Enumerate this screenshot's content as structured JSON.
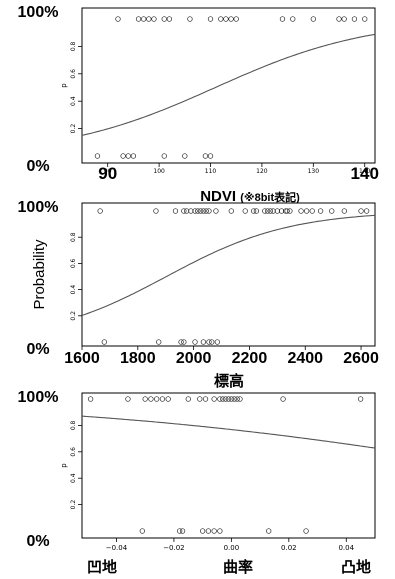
{
  "chart_data": [
    {
      "type": "scatter",
      "subtype": "logistic-regression",
      "xlabel_main": "NDVI",
      "xlabel_note": "(※8bit表記)",
      "ylabel": "p",
      "y_big_top": "100%",
      "y_big_bottom": "0%",
      "xlim": [
        85,
        142
      ],
      "ylim": [
        0,
        1
      ],
      "x_ticks": [
        90,
        100,
        110,
        120,
        130,
        140
      ],
      "x_big_labels": [
        {
          "value": 90,
          "text": "90"
        },
        {
          "value": 140,
          "text": "140"
        }
      ],
      "y_ticks": [
        0.2,
        0.4,
        0.6,
        0.8
      ],
      "curve": {
        "intercept": -7.4,
        "slope": 0.0667
      },
      "points_present": [
        92,
        96,
        97,
        98,
        99,
        101,
        102,
        106,
        110,
        112,
        113,
        114,
        115,
        124,
        126,
        130,
        135,
        136,
        138,
        140
      ],
      "points_absent": [
        88,
        93,
        94,
        95,
        101,
        105,
        109,
        110
      ]
    },
    {
      "type": "scatter",
      "subtype": "logistic-regression",
      "xlabel_main": "標高",
      "ylabel": "Probability",
      "y_big_top": "100%",
      "y_big_bottom": "0%",
      "xlim": [
        1600,
        2650
      ],
      "ylim": [
        0,
        1
      ],
      "x_ticks": [
        1600,
        1800,
        2000,
        2200,
        2400,
        2600
      ],
      "x_tick_labels": [
        "1600",
        "1800",
        "2000",
        "2200",
        "2400",
        "2600"
      ],
      "y_ticks": [
        0.2,
        0.4,
        0.6,
        0.8
      ],
      "curve": {
        "intercept": -8.6,
        "slope": 0.00452
      },
      "points_present": [
        1665,
        1865,
        1935,
        1965,
        1975,
        1990,
        2005,
        2015,
        2025,
        2035,
        2045,
        2055,
        2080,
        2135,
        2185,
        2215,
        2225,
        2255,
        2265,
        2275,
        2285,
        2300,
        2315,
        2330,
        2335,
        2345,
        2385,
        2405,
        2425,
        2455,
        2495,
        2540,
        2600,
        2620
      ],
      "points_absent": [
        1680,
        1875,
        1955,
        1965,
        2005,
        2035,
        2055,
        2065,
        2085
      ]
    },
    {
      "type": "scatter",
      "subtype": "logistic-regression",
      "xlabel_main": "曲率",
      "x_left_label": "凹地",
      "x_right_label": "凸地",
      "ylabel": "p",
      "y_big_top": "100%",
      "y_big_bottom": "0%",
      "xlim": [
        -0.052,
        0.05
      ],
      "ylim": [
        0,
        1
      ],
      "x_ticks": [
        -0.04,
        -0.02,
        0.0,
        0.02,
        0.04
      ],
      "x_tick_labels": [
        "−0.04",
        "−0.02",
        "0.00",
        "0.02",
        "0.04"
      ],
      "y_ticks": [
        0.2,
        0.4,
        0.6,
        0.8
      ],
      "curve": {
        "intercept": 1.2,
        "slope": -13.5
      },
      "points_present": [
        -0.049,
        -0.036,
        -0.03,
        -0.028,
        -0.026,
        -0.024,
        -0.022,
        -0.015,
        -0.011,
        -0.009,
        -0.006,
        -0.004,
        -0.003,
        -0.002,
        -0.001,
        0.0,
        0.001,
        0.002,
        0.003,
        0.018,
        0.045
      ],
      "points_absent": [
        -0.031,
        -0.018,
        -0.017,
        -0.01,
        -0.008,
        -0.006,
        -0.004,
        0.013,
        0.026
      ]
    }
  ]
}
